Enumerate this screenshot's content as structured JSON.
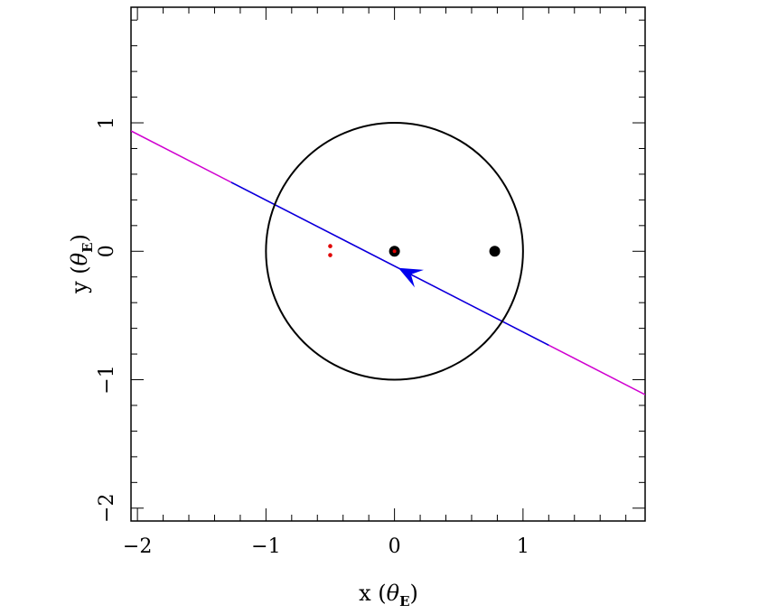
{
  "chart_data": {
    "type": "scatter",
    "xlabel": {
      "prefix": "x  (",
      "symbol": "θ",
      "subscript": "E",
      "suffix": ")"
    },
    "ylabel": {
      "prefix": "y  (",
      "symbol": "θ",
      "subscript": "E",
      "suffix": ")"
    },
    "xlim": [
      -2.05,
      1.95
    ],
    "ylim": [
      -2.1,
      1.9
    ],
    "x_ticks": [
      {
        "value": -2,
        "label": "−2"
      },
      {
        "value": -1,
        "label": "−1"
      },
      {
        "value": 0,
        "label": "0"
      },
      {
        "value": 1,
        "label": "1"
      }
    ],
    "y_ticks": [
      {
        "value": -2,
        "label": "−2"
      },
      {
        "value": -1,
        "label": "−1"
      },
      {
        "value": 0,
        "label": "0"
      },
      {
        "value": 1,
        "label": "1"
      }
    ],
    "minor_tick_step": 0.2,
    "grid": false,
    "einstein_ring": {
      "center": [
        0,
        0
      ],
      "radius": 1.0,
      "color": "#000000"
    },
    "lens_masses": [
      {
        "x": 0.0,
        "y": 0.0,
        "color": "#000000"
      },
      {
        "x": 0.78,
        "y": 0.0,
        "color": "#000000"
      }
    ],
    "lens_center_marker": {
      "x": 0.0,
      "y": 0.0,
      "color": "#e00000"
    },
    "image_points": [
      {
        "x": -0.5,
        "y": 0.04,
        "color": "#e00000"
      },
      {
        "x": -0.5,
        "y": -0.03,
        "color": "#e00000"
      }
    ],
    "trajectory": {
      "slope": -0.5133,
      "intercept": -0.1152,
      "full_range": [
        -2.05,
        1.95
      ],
      "highlight_range": [
        -1.27,
        1.2
      ],
      "outer_color": "#d000d0",
      "inner_color": "#0000dd",
      "arrow": {
        "x": 0.03,
        "y": -0.13,
        "direction": "left",
        "color": "#0000ee"
      }
    }
  }
}
